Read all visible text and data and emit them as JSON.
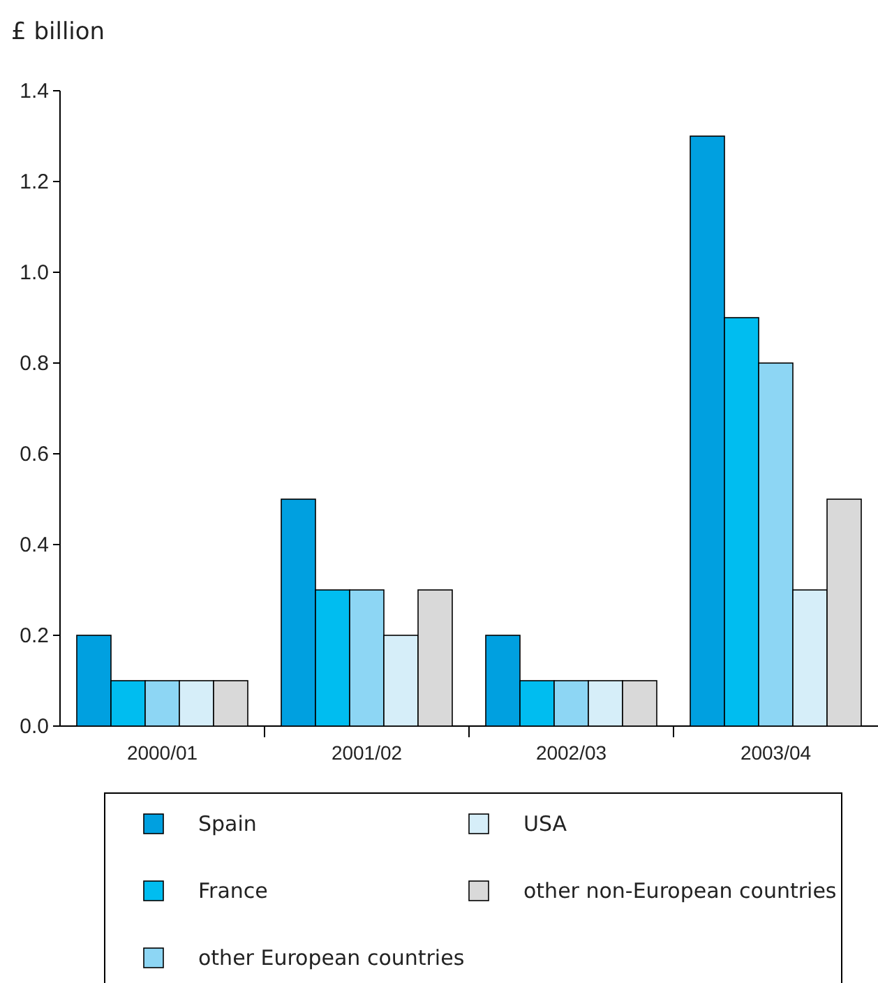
{
  "chart_data": {
    "type": "bar",
    "ylabel": "£ billion",
    "categories": [
      "2000/01",
      "2001/02",
      "2002/03",
      "2003/04"
    ],
    "series": [
      {
        "name": "Spain",
        "color": "#00a0e0",
        "values": [
          0.2,
          0.5,
          0.2,
          1.3
        ]
      },
      {
        "name": "France",
        "color": "#00bdf0",
        "values": [
          0.1,
          0.3,
          0.1,
          0.9
        ]
      },
      {
        "name": "other European countries",
        "color": "#8dd6f4",
        "values": [
          0.1,
          0.3,
          0.1,
          0.8
        ]
      },
      {
        "name": "USA",
        "color": "#d6eef9",
        "values": [
          0.1,
          0.2,
          0.1,
          0.3
        ]
      },
      {
        "name": "other non-European countries",
        "color": "#d9d9d9",
        "values": [
          0.1,
          0.3,
          0.1,
          0.5
        ]
      }
    ],
    "ylim": [
      0,
      1.4
    ],
    "yticks": [
      {
        "value": 0,
        "label": "0.0"
      },
      0.2,
      0.4,
      0.6,
      0.8,
      {
        "value": 1,
        "label": "1.0"
      },
      1.2,
      1.4
    ],
    "grid": false,
    "legend": "bottom"
  }
}
